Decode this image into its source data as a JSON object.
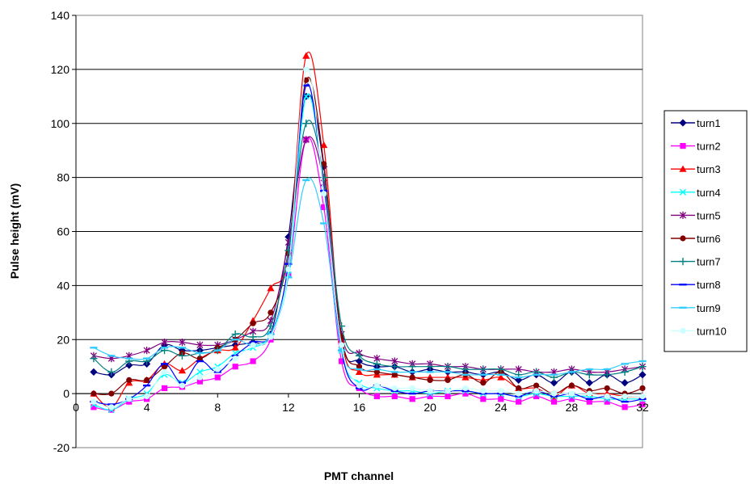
{
  "chart_data": {
    "type": "line",
    "title": "",
    "xlabel": "PMT channel",
    "ylabel": "Pulse height (mV)",
    "xlim": [
      0,
      32
    ],
    "ylim": [
      -20,
      140
    ],
    "xticks": [
      0,
      4,
      8,
      12,
      16,
      20,
      24,
      28,
      32
    ],
    "yticks": [
      -20,
      0,
      20,
      40,
      60,
      80,
      100,
      120,
      140
    ],
    "grid": "horizontal",
    "legend_position": "right",
    "x": [
      1,
      2,
      3,
      4,
      5,
      6,
      7,
      8,
      9,
      10,
      11,
      12,
      13,
      14,
      15,
      16,
      17,
      18,
      19,
      20,
      21,
      22,
      23,
      24,
      25,
      26,
      27,
      28,
      29,
      30,
      31,
      32
    ],
    "series": [
      {
        "name": "turn1",
        "color": "#000080",
        "marker": "diamond",
        "values": [
          8,
          7,
          10.5,
          11,
          18,
          16,
          16,
          17,
          18,
          19,
          22,
          58,
          110,
          84,
          20,
          12,
          10,
          10,
          8,
          9,
          8,
          8,
          7,
          8,
          5,
          7,
          4,
          8,
          4,
          7,
          4,
          7
        ]
      },
      {
        "name": "turn2",
        "color": "#ff00ff",
        "marker": "square",
        "values": [
          -5,
          -6,
          -3,
          -2,
          2,
          2.5,
          4.5,
          6,
          10,
          12,
          20,
          44,
          94,
          69,
          12,
          2,
          -1,
          -1,
          -2,
          -1,
          -1,
          0,
          -2,
          -2,
          -3,
          -1,
          -3,
          -2,
          -3,
          -3,
          -5,
          -4
        ]
      },
      {
        "name": "turn3",
        "color": "#ff0000",
        "marker": "triangle",
        "values": [
          0,
          -5,
          4,
          5,
          11,
          8.5,
          13,
          16,
          17,
          27,
          39,
          52,
          125,
          92,
          20,
          8,
          7,
          7,
          6,
          6,
          6,
          6,
          5,
          6,
          2,
          2,
          -1,
          3,
          0,
          0,
          -1,
          -1
        ]
      },
      {
        "name": "turn4",
        "color": "#00ffff",
        "marker": "x",
        "values": [
          -4,
          -6,
          -2,
          0,
          7,
          4,
          8,
          10,
          15,
          17,
          22,
          44,
          110,
          76,
          16,
          4,
          2,
          1,
          1,
          0,
          1,
          1,
          0,
          0,
          -1,
          0,
          -1,
          -1,
          -1,
          -2,
          -2,
          -2
        ]
      },
      {
        "name": "turn5",
        "color": "#800080",
        "marker": "star",
        "values": [
          14,
          13,
          14,
          16,
          19,
          19,
          18,
          18,
          20,
          23,
          27,
          56,
          94,
          78,
          22,
          15,
          13,
          12,
          11,
          11,
          10,
          10,
          9,
          9,
          9,
          8,
          8,
          9,
          8,
          8,
          9,
          10
        ]
      },
      {
        "name": "turn6",
        "color": "#800000",
        "marker": "circle",
        "values": [
          0,
          0,
          5,
          5,
          10,
          15,
          13,
          17,
          20,
          26,
          30,
          52,
          116,
          85,
          21,
          10,
          8,
          7,
          6,
          5,
          5,
          7,
          4,
          8,
          2,
          3,
          0,
          3,
          1,
          2,
          0,
          2
        ]
      },
      {
        "name": "turn7",
        "color": "#008080",
        "marker": "plus",
        "values": [
          13,
          8,
          12,
          12,
          16,
          14,
          15,
          16,
          22,
          21,
          25,
          53,
          100,
          80,
          25,
          14,
          11,
          10,
          10,
          10,
          10,
          9,
          9,
          9,
          7,
          8,
          6,
          8,
          7,
          7,
          8,
          10
        ]
      },
      {
        "name": "turn8",
        "color": "#0000ff",
        "marker": "dash",
        "values": [
          -3,
          -4,
          -2,
          3,
          11,
          4,
          12,
          8,
          14,
          19,
          22,
          48,
          114,
          75,
          16,
          2,
          3,
          1,
          0,
          1,
          1,
          1,
          0,
          0,
          -1,
          1,
          -1,
          0,
          -2,
          -1,
          -3,
          -2
        ]
      },
      {
        "name": "turn9",
        "color": "#33ccff",
        "marker": "dash",
        "values": [
          17,
          14,
          13,
          13,
          17,
          17,
          15,
          16,
          20,
          18,
          22,
          43,
          79,
          63,
          16,
          9,
          9,
          8,
          8,
          8,
          8,
          7,
          7,
          7,
          6,
          7,
          7,
          8,
          9,
          9,
          11,
          12
        ]
      },
      {
        "name": "turn10",
        "color": "#ccffff",
        "marker": "circle",
        "values": [
          -3,
          -5,
          -2,
          -1,
          8,
          3,
          6,
          9,
          13,
          18,
          21,
          46,
          120,
          74,
          18,
          3,
          3,
          2,
          2,
          1,
          1,
          2,
          1,
          1,
          0,
          1,
          0,
          0,
          0,
          -1,
          -1,
          -1
        ]
      }
    ]
  }
}
